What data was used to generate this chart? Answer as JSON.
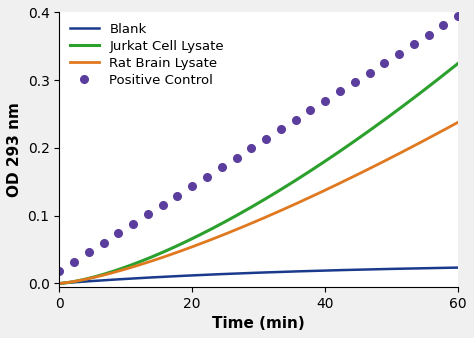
{
  "title": "",
  "xlabel": "Time (min)",
  "ylabel": "OD 293 nm",
  "xlim": [
    0,
    60
  ],
  "ylim": [
    -0.005,
    0.4
  ],
  "xticks": [
    0,
    20,
    40,
    60
  ],
  "yticks": [
    0.0,
    0.1,
    0.2,
    0.3,
    0.4
  ],
  "series": [
    {
      "label": "Blank",
      "color": "#1a3a8c",
      "linewidth": 1.8,
      "dotted": false,
      "shape": "blank"
    },
    {
      "label": "Jurkat Cell Lysate",
      "color": "#2ca02c",
      "linewidth": 2.2,
      "dotted": false,
      "shape": "jurkat"
    },
    {
      "label": "Rat Brain Lysate",
      "color": "#e07820",
      "linewidth": 2.0,
      "dotted": false,
      "shape": "rat"
    },
    {
      "label": "Positive Control",
      "color": "#5b3d9e",
      "linewidth": 2.0,
      "dotted": true,
      "shape": "positive"
    }
  ],
  "legend_fontsize": 9.5,
  "axis_label_fontsize": 11,
  "tick_fontsize": 10,
  "background_color": "#f0f0f0",
  "plot_bg": "#ffffff"
}
